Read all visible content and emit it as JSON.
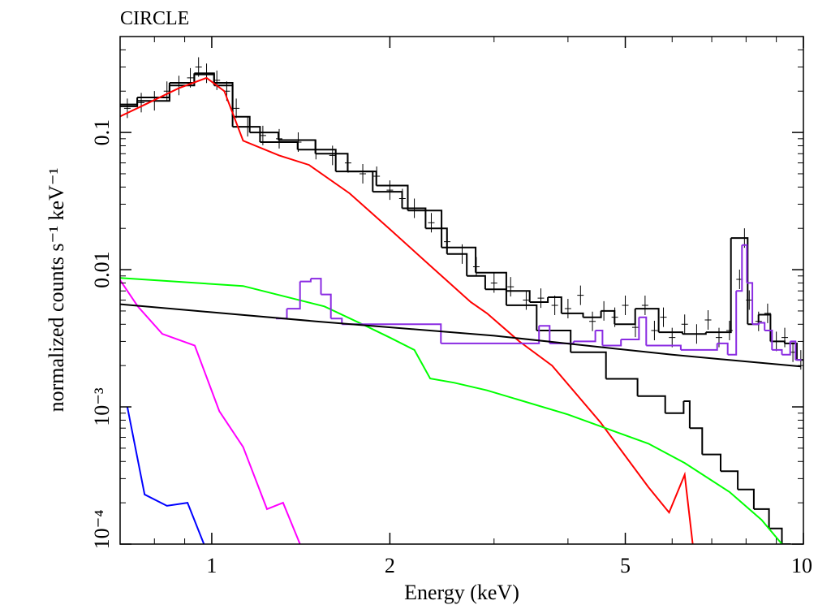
{
  "chart_data": {
    "type": "line",
    "title": "CIRCLE",
    "x_label": "Energy (keV)",
    "y_label": "normalized counts s⁻¹ keV⁻¹",
    "log_x": true,
    "log_y": true,
    "xlim": [
      0.7,
      10
    ],
    "ylim": [
      0.0001,
      0.5
    ],
    "xticks": [
      1,
      2,
      5,
      10
    ],
    "xminorticks": [
      0.8,
      0.9,
      3,
      4,
      6,
      7,
      8,
      9
    ],
    "yticks": [
      {
        "value": 0.0001,
        "label": "10⁻⁴"
      },
      {
        "value": 0.001,
        "label": "10⁻³"
      },
      0.01,
      0.1
    ],
    "yminorticks": [
      0.0002,
      0.0003,
      0.0004,
      0.0005,
      0.0006,
      0.0007,
      0.0008,
      0.0009,
      0.002,
      0.003,
      0.004,
      0.005,
      0.006,
      0.007,
      0.008,
      0.009,
      0.02,
      0.03,
      0.04,
      0.05,
      0.06,
      0.07,
      0.08,
      0.09,
      0.2,
      0.3,
      0.4
    ],
    "series": [
      {
        "style": "points",
        "color": "#000000",
        "x": [
          0.72,
          0.76,
          0.8,
          0.84,
          0.88,
          0.92,
          0.95,
          0.98,
          1.02,
          1.06,
          1.1,
          1.15,
          1.22,
          1.3,
          1.4,
          1.5,
          1.6,
          1.7,
          1.8,
          1.9,
          2.0,
          2.1,
          2.2,
          2.35,
          2.5,
          2.65,
          2.8,
          3.0,
          3.2,
          3.4,
          3.6,
          3.8,
          4.0,
          4.2,
          4.4,
          4.6,
          4.8,
          5.0,
          5.2,
          5.4,
          5.6,
          5.8,
          6.0,
          6.3,
          6.6,
          6.9,
          7.2,
          7.5,
          7.8,
          7.95,
          8.1,
          8.4,
          8.7,
          9.0,
          9.3,
          9.6,
          9.9
        ],
        "values": [
          0.15,
          0.165,
          0.17,
          0.2,
          0.22,
          0.25,
          0.3,
          0.27,
          0.24,
          0.2,
          0.15,
          0.11,
          0.095,
          0.09,
          0.085,
          0.075,
          0.068,
          0.06,
          0.05,
          0.048,
          0.038,
          0.033,
          0.028,
          0.022,
          0.016,
          0.013,
          0.0105,
          0.008,
          0.0075,
          0.006,
          0.0062,
          0.0055,
          0.0052,
          0.0065,
          0.0042,
          0.005,
          0.0045,
          0.0055,
          0.0038,
          0.0055,
          0.0036,
          0.0045,
          0.0032,
          0.004,
          0.0034,
          0.0043,
          0.0032,
          0.0036,
          0.0085,
          0.017,
          0.006,
          0.0042,
          0.0048,
          0.003,
          0.0032,
          0.0025,
          0.0022
        ]
      },
      {
        "style": "step",
        "color": "#000000",
        "x": [
          0.7,
          0.8,
          0.9,
          0.97,
          1.05,
          1.12,
          1.2,
          1.4,
          1.6,
          1.8,
          2.0,
          2.3,
          2.6,
          3.0,
          3.3,
          3.6,
          3.8,
          4.0,
          4.5,
          4.6,
          5.0,
          5.4,
          6.0,
          6.5,
          7.2,
          7.9,
          8.2,
          8.6,
          9.0,
          9.6,
          9.9
        ],
        "values": [
          0.16,
          0.18,
          0.23,
          0.27,
          0.23,
          0.13,
          0.1,
          0.088,
          0.07,
          0.052,
          0.041,
          0.027,
          0.0145,
          0.0095,
          0.007,
          0.0058,
          0.0063,
          0.0048,
          0.0045,
          0.005,
          0.004,
          0.0052,
          0.0035,
          0.0034,
          0.0035,
          0.017,
          0.004,
          0.0047,
          0.003,
          0.0029,
          0.0022
        ]
      },
      {
        "style": "step",
        "color": "#000000",
        "x": [
          0.7,
          0.8,
          0.9,
          0.97,
          1.05,
          1.12,
          1.3,
          1.5,
          1.75,
          2.0,
          2.2,
          2.4,
          2.6,
          2.8,
          3.0,
          3.3,
          3.8,
          4.3,
          5.0,
          5.5,
          6.2,
          6.35,
          6.5,
          7.0,
          7.5,
          8.0,
          8.5,
          9.0,
          9.4
        ],
        "values": [
          0.155,
          0.17,
          0.22,
          0.265,
          0.22,
          0.11,
          0.085,
          0.075,
          0.052,
          0.037,
          0.028,
          0.02,
          0.013,
          0.009,
          0.0072,
          0.0055,
          0.0036,
          0.0025,
          0.0016,
          0.0012,
          0.0009,
          0.0011,
          0.0007,
          0.00045,
          0.00034,
          0.00025,
          0.00018,
          0.00013,
          0.0001
        ]
      },
      {
        "style": "line",
        "color": "#ff0000",
        "x": [
          0.7,
          0.774,
          0.879,
          0.98,
          1.05,
          1.13,
          1.3,
          1.46,
          1.71,
          2.0,
          2.34,
          2.74,
          2.92,
          3.31,
          3.76,
          4.54,
          5.47,
          5.93,
          6.3,
          6.5
        ],
        "values": [
          0.131,
          0.161,
          0.21,
          0.25,
          0.2,
          0.087,
          0.068,
          0.058,
          0.036,
          0.0197,
          0.0107,
          0.0058,
          0.0048,
          0.003,
          0.002,
          0.00077,
          0.00026,
          0.00017,
          0.00032,
          0.0001
        ]
      },
      {
        "style": "line",
        "color": "#00ff00",
        "x": [
          0.7,
          1.13,
          1.55,
          1.82,
          2.0,
          2.2,
          2.34,
          2.57,
          2.92,
          4.0,
          5.47,
          6.3,
          7.5,
          8.5,
          9.2
        ],
        "values": [
          0.0087,
          0.0076,
          0.0054,
          0.0039,
          0.0032,
          0.0026,
          0.00161,
          0.0015,
          0.00132,
          0.00088,
          0.00054,
          0.00039,
          0.00024,
          0.00015,
          0.0001
        ]
      },
      {
        "style": "line",
        "color": "#ff00ff",
        "x": [
          0.7,
          0.75,
          0.825,
          0.936,
          1.03,
          1.13,
          1.24,
          1.32,
          1.41
        ],
        "values": [
          0.0084,
          0.0054,
          0.0034,
          0.0028,
          0.00093,
          0.00051,
          0.00018,
          0.0002,
          0.0001
        ]
      },
      {
        "style": "line",
        "color": "#0000ff",
        "x": [
          0.72,
          0.77,
          0.84,
          0.91,
          0.97
        ],
        "values": [
          0.001,
          0.00023,
          0.00019,
          0.0002,
          0.0001
        ]
      },
      {
        "style": "step",
        "color": "#8a2be2",
        "x": [
          1.3,
          1.38,
          1.44,
          1.5,
          1.56,
          1.62,
          1.7,
          3.5,
          3.65,
          3.8,
          4.4,
          4.5,
          4.65,
          5.2,
          5.35,
          5.5,
          7.0,
          7.3,
          7.6,
          7.8,
          7.95,
          8.1,
          8.3,
          8.5,
          8.7,
          9.0,
          9.4,
          9.6,
          9.8
        ],
        "values": [
          0.0044,
          0.0052,
          0.0082,
          0.0086,
          0.0066,
          0.0044,
          0.004,
          0.0029,
          0.0039,
          0.0029,
          0.003,
          0.0036,
          0.0028,
          0.0031,
          0.0045,
          0.0028,
          0.0026,
          0.0029,
          0.0024,
          0.007,
          0.0151,
          0.008,
          0.004,
          0.0041,
          0.0036,
          0.0026,
          0.0024,
          0.003,
          0.0022
        ]
      },
      {
        "style": "line",
        "color": "#000000",
        "x": [
          0.7,
          1.5,
          3.0,
          6.0,
          9.9
        ],
        "values": [
          0.0056,
          0.0042,
          0.0033,
          0.0024,
          0.00197
        ]
      }
    ]
  }
}
